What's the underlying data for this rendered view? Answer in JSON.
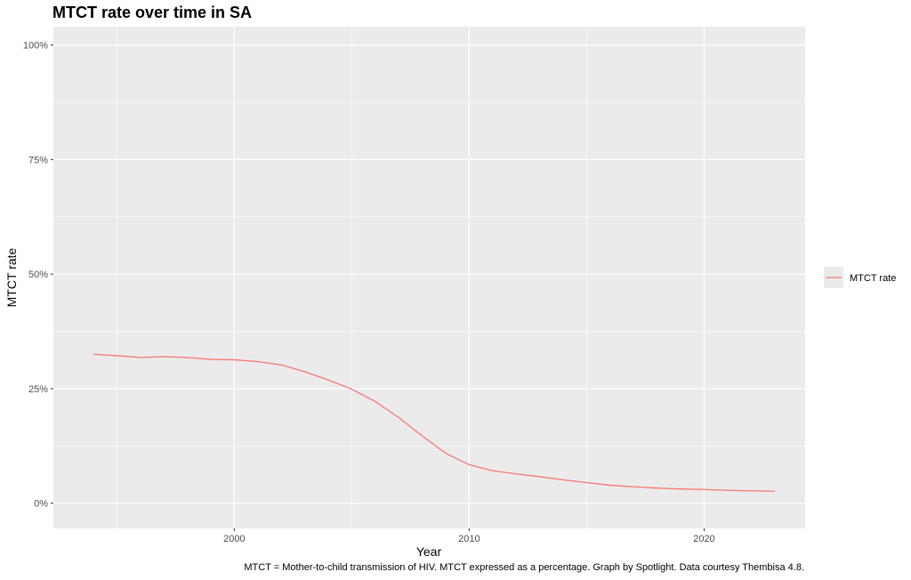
{
  "chart_data": {
    "type": "line",
    "title": "MTCT rate over time in SA",
    "xlabel": "Year",
    "ylabel": "MTCT rate",
    "xlim": [
      1992.3,
      2024.3
    ],
    "ylim": [
      -0.055,
      1.04
    ],
    "x_ticks": [
      2000,
      2010,
      2020
    ],
    "x_tick_labels": [
      "2000",
      "2010",
      "2020"
    ],
    "y_ticks": [
      0,
      0.25,
      0.5,
      0.75,
      1.0
    ],
    "y_tick_labels": [
      "0%",
      "25%",
      "50%",
      "75%",
      "100%"
    ],
    "grid": true,
    "legend_position": "right",
    "series": [
      {
        "name": "MTCT rate",
        "color": "#F8766D",
        "x": [
          1994,
          1995,
          1996,
          1997,
          1998,
          1999,
          2000,
          2001,
          2002,
          2003,
          2004,
          2005,
          2006,
          2007,
          2008,
          2009,
          2010,
          2011,
          2012,
          2013,
          2014,
          2015,
          2016,
          2017,
          2018,
          2019,
          2020,
          2021,
          2022,
          2023
        ],
        "values": [
          0.325,
          0.322,
          0.318,
          0.32,
          0.318,
          0.314,
          0.313,
          0.309,
          0.302,
          0.287,
          0.269,
          0.249,
          0.222,
          0.187,
          0.147,
          0.109,
          0.084,
          0.071,
          0.064,
          0.058,
          0.051,
          0.045,
          0.039,
          0.036,
          0.033,
          0.031,
          0.03,
          0.028,
          0.027,
          0.026
        ]
      }
    ],
    "caption": "MTCT = Mother-to-child transmission of HIV. MTCT expressed as a percentage. Graph by Spotlight. Data courtesy Thembisa 4.8."
  }
}
